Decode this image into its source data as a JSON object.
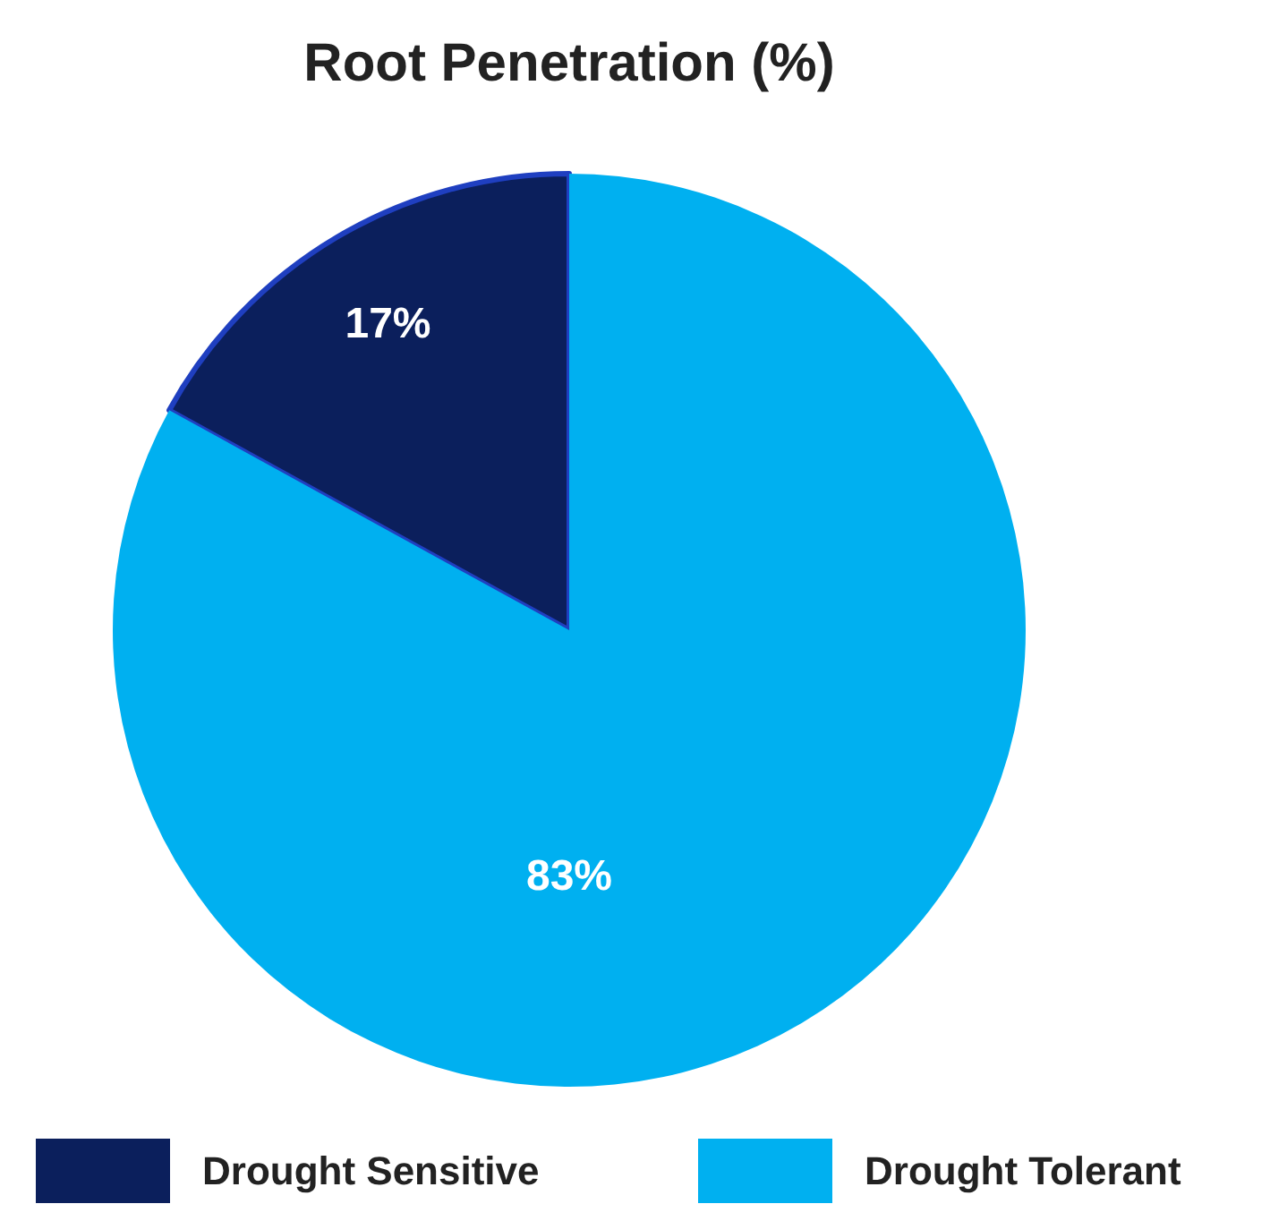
{
  "chart_data": {
    "type": "pie",
    "title": "Root Penetration (%)",
    "categories": [
      "Drought Sensitive",
      "Drought Tolerant"
    ],
    "values": [
      17,
      83
    ],
    "colors": [
      "#0b1f5c",
      "#00b0f0"
    ],
    "value_labels": [
      "17%",
      "83%"
    ],
    "legend": "bottom"
  }
}
